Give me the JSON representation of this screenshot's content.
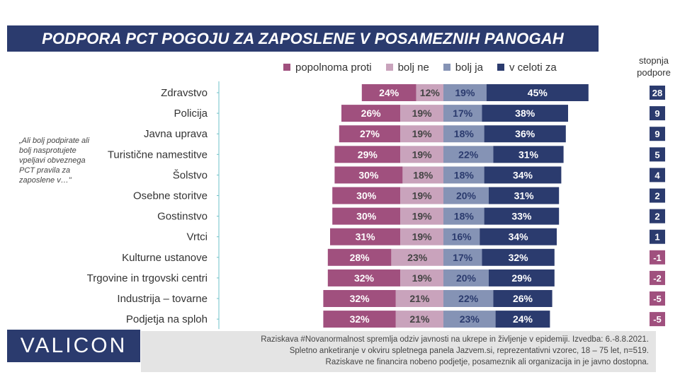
{
  "header": {
    "title": "PODPORA PCT POGOJU ZA ZAPOSLENE V POSAMEZNIH PANOGAH"
  },
  "side_note": "„Ali bolj podpirate ali bolj nasprotujete vpeljavi obveznega PCT pravila za zaposlene v…\"",
  "score_header": {
    "line1": "stopnja",
    "line2": "podpore"
  },
  "logo": "VALICON",
  "footnote": {
    "line1": "Raziskava #Novanormalnost spremlja odziv javnosti na ukrepe in življenje v epidemiji. Izvedba: 6.-8.8.2021.",
    "line2": "Spletno anketiranje v okviru spletnega panela Jazvem.si, reprezentativni vzorec, 18 – 75 let, n=519.",
    "line3": "Raziskave ne financira nobeno podjetje, posameznik ali organizacija in je javno dostopna."
  },
  "colors": {
    "popolnoma_proti": "#a0507e",
    "bolj_ne": "#c9a3bc",
    "bolj_ja": "#8593b5",
    "v_celoti_za": "#2b3b6e",
    "score_positive": "#2b3b6e",
    "score_negative": "#a0507e"
  },
  "chart_data": {
    "type": "bar",
    "orientation": "horizontal-diverging",
    "categories": [
      "Zdravstvo",
      "Policija",
      "Javna uprava",
      "Turistične namestitve",
      "Šolstvo",
      "Osebne storitve",
      "Gostinstvo",
      "Vrtci",
      "Kulturne ustanove",
      "Trgovine in trgovski centri",
      "Industrija – tovarne",
      "Podjetja na sploh"
    ],
    "series": [
      {
        "name": "popolnoma proti",
        "values": [
          24,
          26,
          27,
          29,
          30,
          30,
          30,
          31,
          28,
          32,
          32,
          32
        ]
      },
      {
        "name": "bolj ne",
        "values": [
          12,
          19,
          19,
          19,
          18,
          19,
          19,
          19,
          23,
          19,
          21,
          21
        ]
      },
      {
        "name": "bolj ja",
        "values": [
          19,
          17,
          18,
          22,
          18,
          20,
          18,
          16,
          17,
          20,
          22,
          23
        ]
      },
      {
        "name": "v celoti za",
        "values": [
          45,
          38,
          36,
          31,
          34,
          31,
          33,
          34,
          32,
          29,
          26,
          24
        ]
      }
    ],
    "value_suffix": "%",
    "stopnja_podpore": [
      28,
      9,
      9,
      5,
      4,
      2,
      2,
      1,
      -1,
      -2,
      -5,
      -5
    ]
  }
}
